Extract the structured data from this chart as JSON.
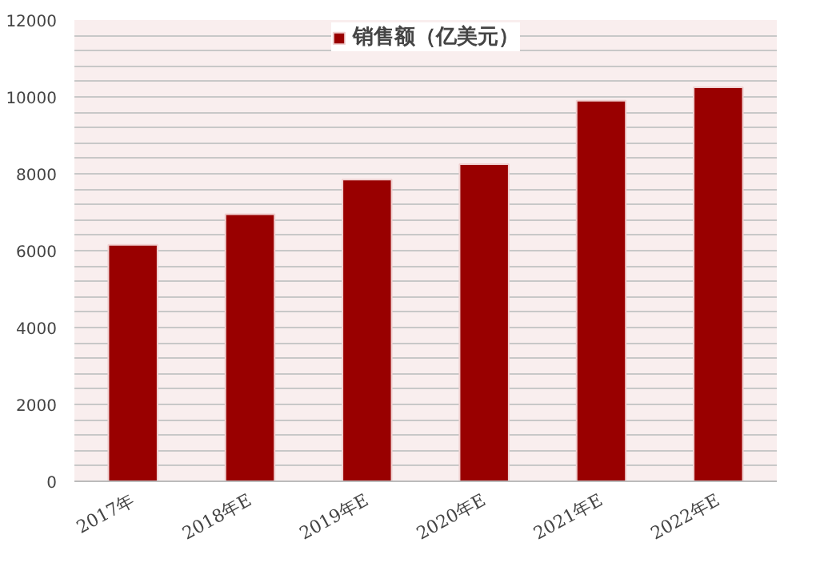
{
  "chart_data": {
    "type": "bar",
    "categories": [
      "2017年",
      "2018年E",
      "2019年E",
      "2020年E",
      "2021年E",
      "2022年E"
    ],
    "series": [
      {
        "name": "销售额（亿美元）",
        "color": "#990000",
        "values": [
          6150,
          6950,
          7850,
          8250,
          9900,
          10250
        ]
      }
    ],
    "ylim": [
      0,
      12000
    ],
    "yticks": [
      0,
      {
        "value": 400,
        "label": null
      },
      {
        "value": 800,
        "label": null
      },
      {
        "value": 1200,
        "label": null
      },
      {
        "value": 1600,
        "label": null
      },
      2000,
      {
        "value": 2400,
        "label": null
      },
      {
        "value": 2800,
        "label": null
      },
      {
        "value": 3200,
        "label": null
      },
      {
        "value": 3600,
        "label": null
      },
      4000,
      {
        "value": 4400,
        "label": null
      },
      {
        "value": 4800,
        "label": null
      },
      {
        "value": 5200,
        "label": null
      },
      {
        "value": 5600,
        "label": null
      },
      6000,
      {
        "value": 6400,
        "label": null
      },
      {
        "value": 6800,
        "label": null
      },
      {
        "value": 7200,
        "label": null
      },
      {
        "value": 7600,
        "label": null
      },
      8000,
      {
        "value": 8400,
        "label": null
      },
      {
        "value": 8800,
        "label": null
      },
      {
        "value": 9200,
        "label": null
      },
      {
        "value": 9600,
        "label": null
      },
      10000,
      {
        "value": 10400,
        "label": null
      },
      {
        "value": 10800,
        "label": null
      },
      {
        "value": 11200,
        "label": null
      },
      {
        "value": 11600,
        "label": null
      },
      12000
    ],
    "grid": "y",
    "legend": "top"
  }
}
